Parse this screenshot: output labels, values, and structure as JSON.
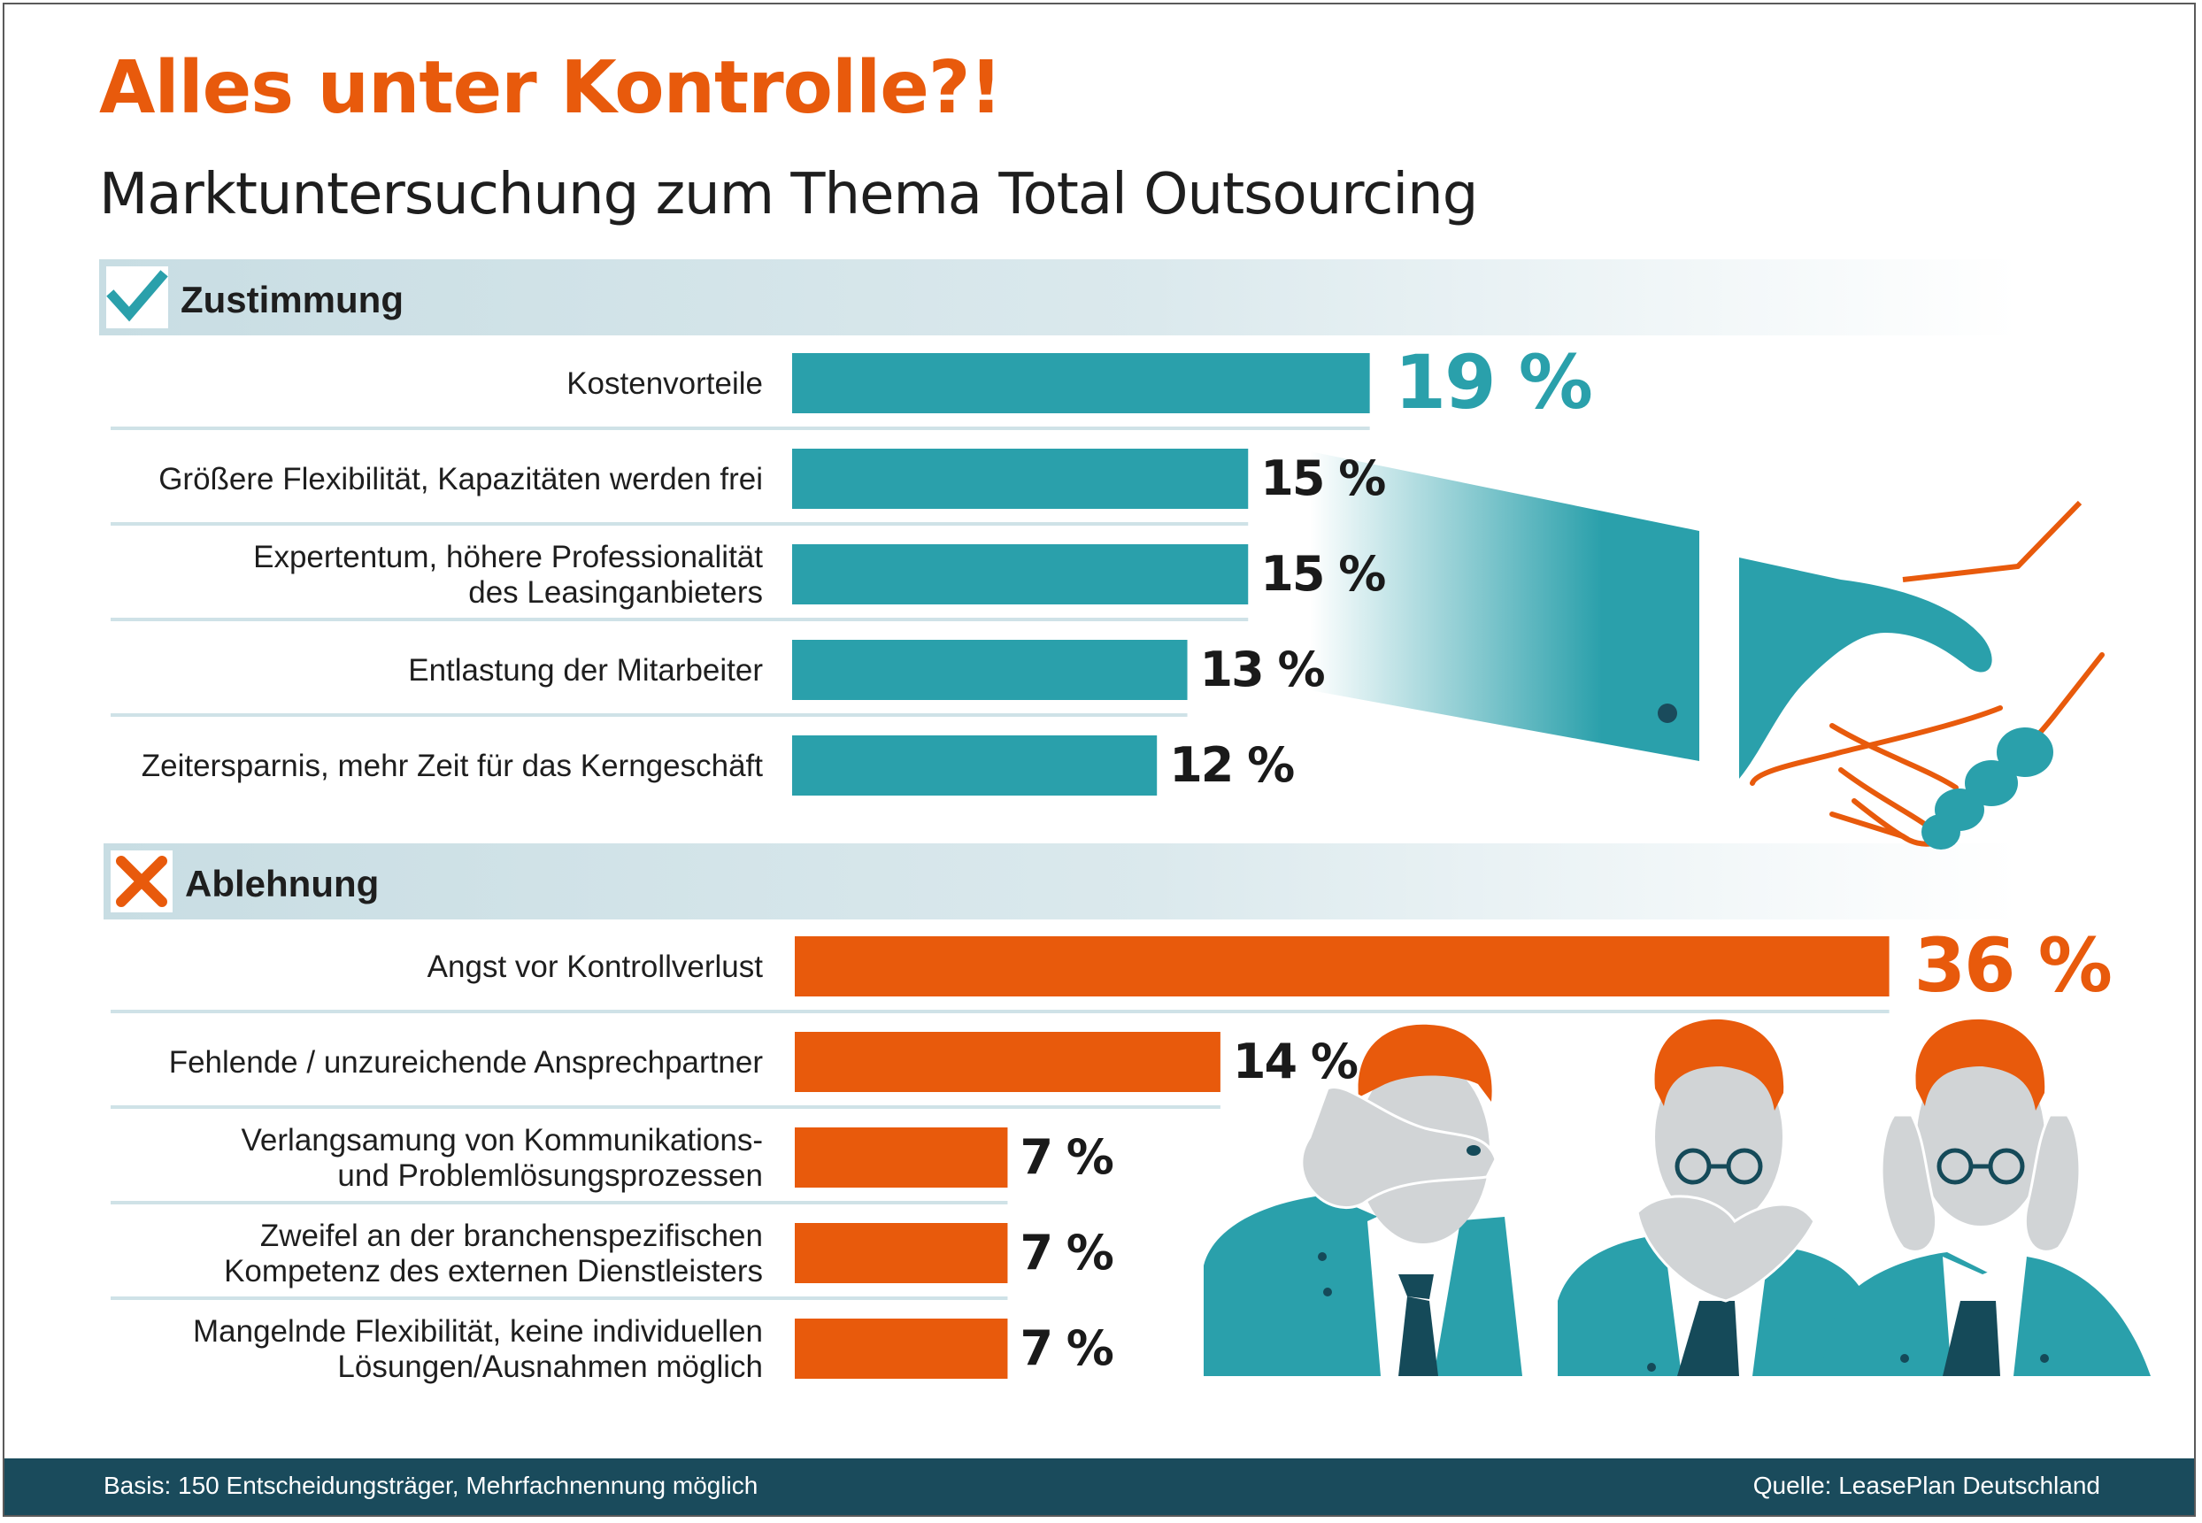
{
  "header": {
    "title": "Alles unter Kontrolle?!",
    "subtitle": "Marktuntersuchung zum Thema Total Outsourcing"
  },
  "colors": {
    "teal": "#2aa0ab",
    "orange": "#e85a0c",
    "dark_text": "#1e1e1e",
    "footer_bg": "#1a4b5c"
  },
  "chart_data": [
    {
      "type": "bar",
      "orientation": "horizontal",
      "section": "Zustimmung",
      "icon": "check-icon",
      "color": "#2aa0ab",
      "value_suffix": "%",
      "categories": [
        "Kostenvorteile",
        "Größere Flexibilität, Kapazitäten werden frei",
        "Expertentum, höhere Professionalität\ndes Leasinganbieters",
        "Entlastung der Mitarbeiter",
        "Zeitersparnis, mehr Zeit für das Kerngeschäft"
      ],
      "values": [
        19,
        15,
        15,
        13,
        12
      ],
      "value_labels": [
        "19 %",
        "15 %",
        "15 %",
        "13 %",
        "12 %"
      ],
      "highlight_index": 0
    },
    {
      "type": "bar",
      "orientation": "horizontal",
      "section": "Ablehnung",
      "icon": "cross-icon",
      "color": "#e85a0c",
      "value_suffix": "%",
      "categories": [
        "Angst vor Kontrollverlust",
        "Fehlende / unzureichende Ansprechpartner",
        "Verlangsamung von Kommunikations-\nund Problemlösungsprozessen",
        "Zweifel an der branchenspezifischen\nKompetenz des externen Dienstleisters",
        "Mangelnde Flexibilität, keine individuellen\nLösungen/Ausnahmen möglich"
      ],
      "values": [
        36,
        14,
        7,
        7,
        7
      ],
      "value_labels": [
        "36 %",
        "14 %",
        "7 %",
        "7 %",
        "7 %"
      ],
      "highlight_index": 0
    }
  ],
  "footer": {
    "basis": "Basis: 150 Entscheidungsträger, Mehrfachnennung möglich",
    "source": "Quelle: LeasePlan Deutschland"
  }
}
